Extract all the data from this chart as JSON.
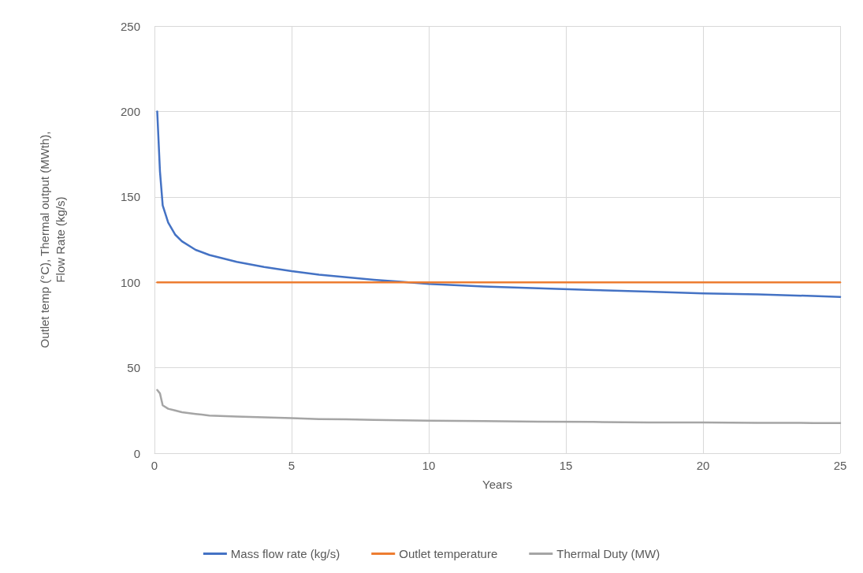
{
  "chart_data": {
    "type": "line",
    "xlabel": "Years",
    "ylabel": "Outlet temp (°C), Thermal output (MWth),\nFlow Rate (kg/s)",
    "x": [
      0.1,
      0.2,
      0.3,
      0.5,
      0.75,
      1,
      1.5,
      2,
      3,
      4,
      5,
      6,
      7,
      8,
      9,
      10,
      12,
      14,
      16,
      18,
      20,
      22,
      24,
      25
    ],
    "series": [
      {
        "name": "Mass flow rate (kg/s)",
        "color": "#4472c4",
        "values": [
          200,
          165,
          145,
          135,
          128,
          124,
          119,
          116,
          112,
          109,
          106.5,
          104.5,
          103,
          101.5,
          100.3,
          99,
          97.5,
          96.5,
          95.5,
          94.5,
          93.5,
          93,
          92,
          91.5
        ]
      },
      {
        "name": "Outlet temperature",
        "color": "#ed7d31",
        "values": [
          100,
          100,
          100,
          100,
          100,
          100,
          100,
          100,
          100,
          100,
          100,
          100,
          100,
          100,
          100,
          100,
          100,
          100,
          100,
          100,
          100,
          100,
          100,
          100
        ]
      },
      {
        "name": "Thermal Duty (MW)",
        "color": "#a5a5a5",
        "values": [
          37,
          35,
          28,
          26,
          25,
          24,
          23,
          22,
          21.5,
          21,
          20.5,
          20,
          19.8,
          19.5,
          19.3,
          19,
          18.8,
          18.5,
          18.3,
          18,
          18,
          17.8,
          17.7,
          17.7
        ]
      }
    ],
    "xlim": [
      0,
      25
    ],
    "xticks": [
      0,
      5,
      10,
      15,
      20,
      25
    ],
    "ylim": [
      0,
      250
    ],
    "yticks": [
      0,
      50,
      100,
      150,
      200,
      250
    ],
    "grid": true,
    "legend": "bottom",
    "marker": "none",
    "line_style": "solid"
  }
}
